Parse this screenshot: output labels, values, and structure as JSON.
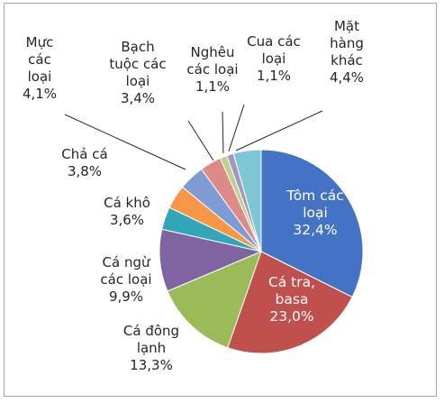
{
  "chart_data": {
    "type": "pie",
    "title": "",
    "slices": [
      {
        "lines": [
          "Tôm các",
          "loại",
          "32,4%"
        ],
        "value": 32.4,
        "color": "#4472c4"
      },
      {
        "lines": [
          "Cá tra,",
          "basa",
          "23,0%"
        ],
        "value": 23.0,
        "color": "#c0504d"
      },
      {
        "lines": [
          "Cá đông",
          "lạnh",
          "13,3%"
        ],
        "value": 13.3,
        "color": "#9bbb59"
      },
      {
        "lines": [
          "Cá ngừ",
          "các loại",
          "9,9%"
        ],
        "value": 9.9,
        "color": "#8064a2"
      },
      {
        "lines": [
          "Cá khô",
          "3,6%"
        ],
        "value": 3.6,
        "color": "#31a6b9"
      },
      {
        "lines": [
          "Chả cá",
          "3,8%"
        ],
        "value": 3.8,
        "color": "#f79646"
      },
      {
        "lines": [
          "Mực",
          "các",
          "loại",
          "4,1%"
        ],
        "value": 4.1,
        "color": "#7f9bd4"
      },
      {
        "lines": [
          "Bạch",
          "tuộc các",
          "loại",
          "3,4%"
        ],
        "value": 3.4,
        "color": "#dd8a88"
      },
      {
        "lines": [
          "Nghêu",
          "các loại",
          "1,1%"
        ],
        "value": 1.1,
        "color": "#b9d28e"
      },
      {
        "lines": [
          "Cua các",
          "loại",
          "1,1%"
        ],
        "value": 1.1,
        "color": "#a694c2"
      },
      {
        "lines": [
          "Mặt",
          "hàng",
          "khác",
          "4,4%"
        ],
        "value": 4.4,
        "color": "#7fc6d4"
      }
    ]
  }
}
